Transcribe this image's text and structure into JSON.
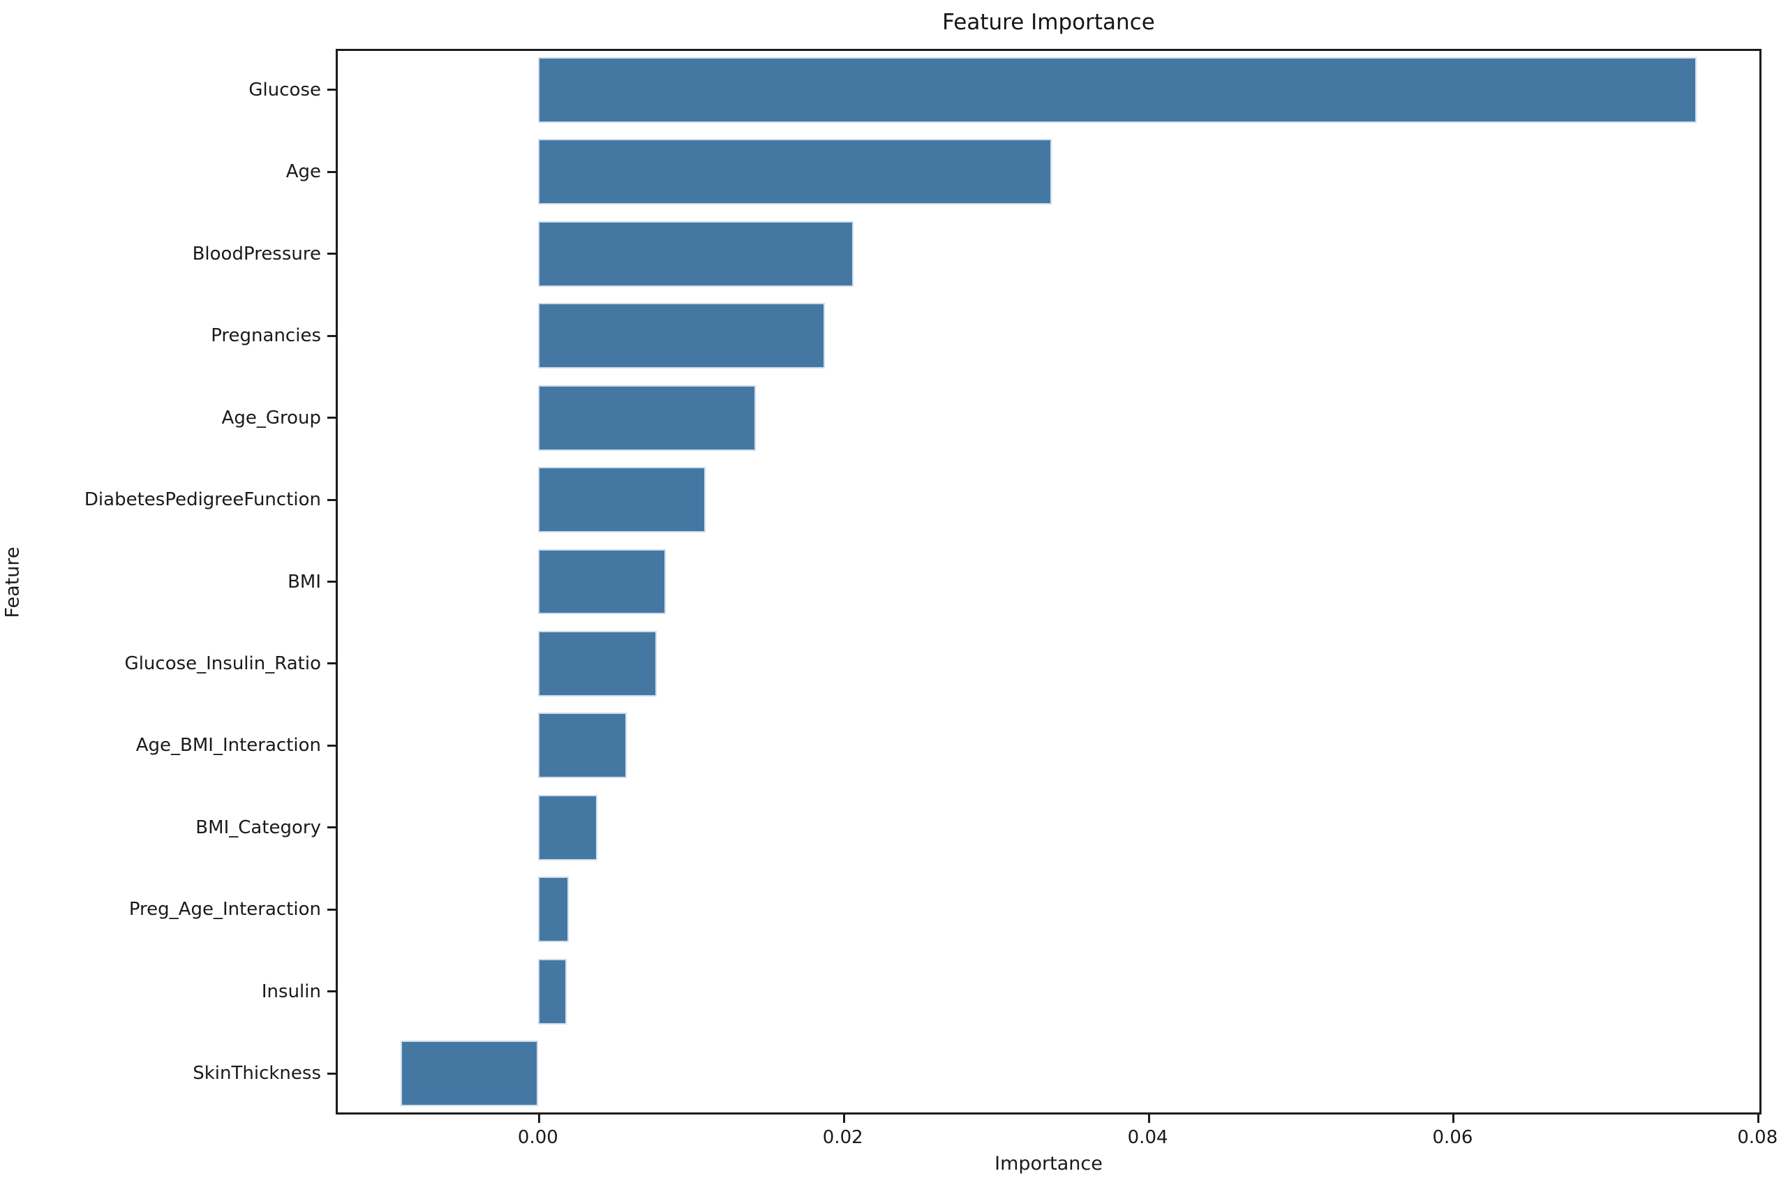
{
  "chart_data": {
    "type": "bar",
    "orientation": "horizontal",
    "title": "Feature Importance",
    "xlabel": "Importance",
    "ylabel": "Feature",
    "categories": [
      "Glucose",
      "Age",
      "BloodPressure",
      "Pregnancies",
      "Age_Group",
      "DiabetesPedigreeFunction",
      "BMI",
      "Glucose_Insulin_Ratio",
      "Age_BMI_Interaction",
      "BMI_Category",
      "Preg_Age_Interaction",
      "Insulin",
      "SkinThickness"
    ],
    "values": [
      0.076,
      0.0337,
      0.0207,
      0.0188,
      0.0143,
      0.011,
      0.0084,
      0.0078,
      0.0058,
      0.0039,
      0.002,
      0.0019,
      -0.009
    ],
    "xlim": [
      -0.01327,
      0.08026
    ],
    "xticks": [
      0.0,
      0.02,
      0.04,
      0.06,
      0.08
    ],
    "xtick_labels": [
      "0.00",
      "0.02",
      "0.04",
      "0.06",
      "0.08"
    ],
    "grid": false,
    "legend_position": "none",
    "bar_color": "#4577a3",
    "bar_edge_color": "#cddcea",
    "spine_color": "#1c1c1c",
    "text_color": "#1a1a1a"
  }
}
